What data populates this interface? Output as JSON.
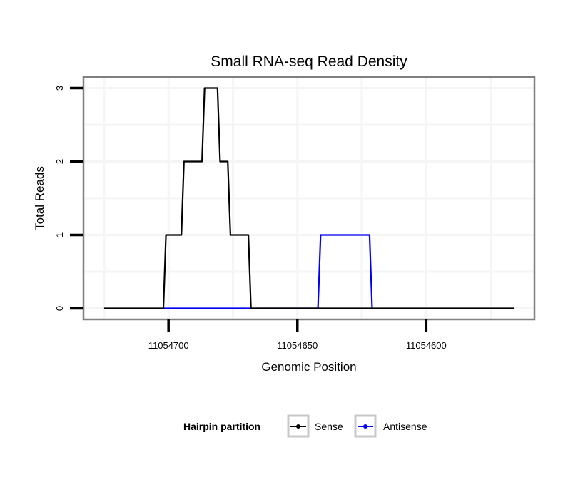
{
  "chart_data": {
    "type": "line",
    "title": "Small RNA-seq Read Density",
    "xlabel": "Genomic Position",
    "ylabel": "Total Reads",
    "x_reversed": true,
    "xlim": [
      11054733,
      11054558
    ],
    "ylim": [
      -0.15,
      3.15
    ],
    "x_ticks": [
      11054700,
      11054650,
      11054600
    ],
    "x_tick_labels": [
      "11054700",
      "11054650",
      "11054600"
    ],
    "y_ticks": [
      0,
      1,
      2,
      3
    ],
    "y_tick_labels": [
      "0",
      "1",
      "2",
      "3"
    ],
    "grid": true,
    "legend": {
      "title": "Hairpin partition",
      "placement": "bottom",
      "entries": [
        "Sense",
        "Antisense"
      ]
    },
    "series": [
      {
        "name": "Sense",
        "color": "#000000",
        "x": [
          11054725,
          11054702,
          11054701,
          11054695,
          11054694,
          11054687,
          11054686,
          11054681,
          11054680,
          11054677,
          11054676,
          11054669,
          11054668,
          11054566
        ],
        "y": [
          0,
          0,
          1,
          1,
          2,
          2,
          3,
          3,
          2,
          2,
          1,
          1,
          0,
          0
        ]
      },
      {
        "name": "Antisense",
        "color": "#0000ff",
        "x": [
          11054702,
          11054642,
          11054641,
          11054622,
          11054621
        ],
        "y": [
          0,
          0,
          1,
          1,
          0
        ]
      }
    ]
  }
}
